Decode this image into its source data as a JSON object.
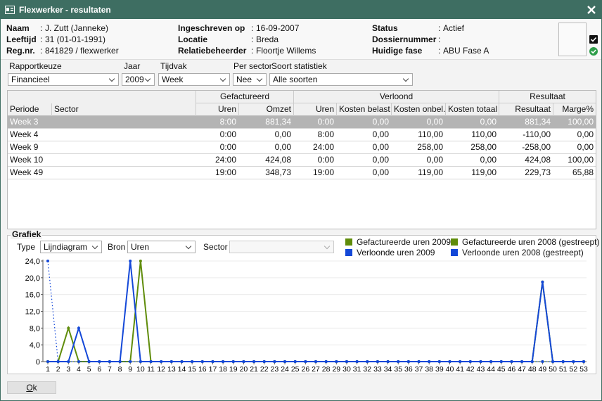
{
  "window": {
    "title": "Flexwerker - resultaten"
  },
  "separator": ":",
  "fields": [
    {
      "label": "Naam",
      "value": "J. Zutt (Janneke)"
    },
    {
      "label": "Leeftijd",
      "value": "31 (01-01-1991)"
    },
    {
      "label": "Reg.nr.",
      "value": "841829 / flexwerker"
    },
    {
      "label": "Ingeschreven op",
      "value": "16-09-2007"
    },
    {
      "label": "Locatie",
      "value": "Breda"
    },
    {
      "label": "Relatiebeheerder",
      "value": "Floortje Willems"
    },
    {
      "label": "Status",
      "value": "Actief"
    },
    {
      "label": "Dossiernummer"
    },
    {
      "label": "Huidige fase",
      "value": "ABU Fase A"
    }
  ],
  "filters": [
    {
      "label": "Rapportkeuze",
      "value": "Financieel"
    },
    {
      "label": "Jaar",
      "value": "2009"
    },
    {
      "label": "Tijdvak",
      "value": "Week"
    },
    {
      "label": "Per sector",
      "value": "Nee"
    },
    {
      "label": "Soort statistiek",
      "value": "Alle soorten"
    }
  ],
  "table": {
    "groups": [
      "Gefactureerd",
      "Verloond",
      "Resultaat"
    ],
    "columns": [
      "Periode",
      "Sector",
      "Uren",
      "Omzet",
      "Uren",
      "Kosten belast",
      "Kosten onbel.",
      "Kosten totaal",
      "Resultaat",
      "Marge%"
    ],
    "rows": [
      [
        "Week 3",
        null,
        "8:00",
        "881,34",
        "0:00",
        "0,00",
        "0,00",
        "0,00",
        "881,34",
        "100,00"
      ],
      [
        "Week 4",
        null,
        "0:00",
        "0,00",
        "8:00",
        "0,00",
        "110,00",
        "110,00",
        "-110,00",
        "0,00"
      ],
      [
        "Week 9",
        null,
        "0:00",
        "0,00",
        "24:00",
        "0,00",
        "258,00",
        "258,00",
        "-258,00",
        "0,00"
      ],
      [
        "Week 10",
        null,
        "24:00",
        "424,08",
        "0:00",
        "0,00",
        "0,00",
        "0,00",
        "424,08",
        "100,00"
      ],
      [
        "Week 49",
        null,
        "19:00",
        "348,73",
        "19:00",
        "0,00",
        "119,00",
        "119,00",
        "229,73",
        "65,88"
      ]
    ],
    "selected_row": 0
  },
  "chart_section": {
    "title": "Grafiek",
    "controls": [
      {
        "label": "Type",
        "value": "Lijndiagram"
      },
      {
        "label": "Bron",
        "value": "Uren"
      },
      {
        "label": "Sector"
      }
    ]
  },
  "chart_data": {
    "type": "line",
    "categories": [
      "1",
      "2",
      "3",
      "4",
      "5",
      "6",
      "7",
      "8",
      "9",
      "10",
      "11",
      "12",
      "13",
      "14",
      "15",
      "16",
      "17",
      "18",
      "19",
      "20",
      "21",
      "22",
      "23",
      "24",
      "25",
      "26",
      "27",
      "28",
      "29",
      "30",
      "31",
      "32",
      "33",
      "34",
      "35",
      "36",
      "37",
      "38",
      "39",
      "40",
      "41",
      "42",
      "43",
      "44",
      "45",
      "46",
      "47",
      "48",
      "49",
      "50",
      "51",
      "52",
      "53"
    ],
    "ylim": [
      0,
      24
    ],
    "yticks": [
      0,
      {
        "value": 4,
        "label": "4,0"
      },
      {
        "value": 8,
        "label": "8,0"
      },
      {
        "value": 12,
        "label": "12,0"
      },
      {
        "value": 16,
        "label": "16,0"
      },
      {
        "value": 20,
        "label": "20,0"
      },
      {
        "value": 24,
        "label": "24,0"
      }
    ],
    "grid": true,
    "legend": "top-right",
    "series": [
      {
        "name": "Gefactureerde uren 2009",
        "color": "#5f8c0a",
        "line_style": "solid",
        "values": [
          0,
          0,
          8,
          0,
          0,
          0,
          0,
          0,
          0,
          24,
          0,
          0,
          0,
          0,
          0,
          0,
          0,
          0,
          0,
          0,
          0,
          0,
          0,
          0,
          0,
          0,
          0,
          0,
          0,
          0,
          0,
          0,
          0,
          0,
          0,
          0,
          0,
          0,
          0,
          0,
          0,
          0,
          0,
          0,
          0,
          0,
          0,
          0,
          19,
          0,
          0,
          0,
          0
        ]
      },
      {
        "name": "Gefactureerde uren 2008 (gestreept)",
        "color": "#5f8c0a",
        "line_style": "dotted",
        "values": [
          0,
          0,
          0,
          0,
          0,
          0,
          0,
          0,
          0,
          0,
          0,
          0,
          0,
          0,
          0,
          0,
          0,
          0,
          0,
          0,
          0,
          0,
          0,
          0,
          0,
          0,
          0,
          0,
          0,
          0,
          0,
          0,
          0,
          0,
          0,
          0,
          0,
          0,
          0,
          0,
          0,
          0,
          0,
          0,
          0,
          0,
          0,
          0,
          0,
          0,
          0,
          0,
          0
        ]
      },
      {
        "name": "Verloonde uren 2009",
        "color": "#1448d8",
        "line_style": "solid",
        "values": [
          0,
          0,
          0,
          8,
          0,
          0,
          0,
          0,
          24,
          0,
          0,
          0,
          0,
          0,
          0,
          0,
          0,
          0,
          0,
          0,
          0,
          0,
          0,
          0,
          0,
          0,
          0,
          0,
          0,
          0,
          0,
          0,
          0,
          0,
          0,
          0,
          0,
          0,
          0,
          0,
          0,
          0,
          0,
          0,
          0,
          0,
          0,
          0,
          19,
          0,
          0,
          0,
          0
        ]
      },
      {
        "name": "Verloonde uren 2008 (gestreept)",
        "color": "#1448d8",
        "line_style": "dotted",
        "values": [
          24,
          0,
          0,
          0,
          0,
          0,
          0,
          0,
          0,
          0,
          0,
          0,
          0,
          0,
          0,
          0,
          0,
          0,
          0,
          0,
          0,
          0,
          0,
          0,
          0,
          0,
          0,
          0,
          0,
          0,
          0,
          0,
          0,
          0,
          0,
          0,
          0,
          0,
          0,
          0,
          0,
          0,
          0,
          0,
          0,
          0,
          0,
          0,
          0,
          0,
          0,
          0,
          0
        ]
      }
    ]
  },
  "buttons": {
    "ok": "Ok"
  }
}
